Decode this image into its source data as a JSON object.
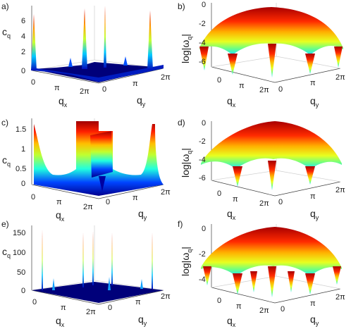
{
  "figure": {
    "panels": [
      {
        "label": "a)",
        "ylabel_main": "c",
        "ylabel_sub": "q",
        "xlabel_main": "q",
        "xlabel_sub": "x",
        "ylabel2_main": "q",
        "ylabel2_sub": "y",
        "z_ticks": [
          "0",
          "2",
          "4",
          "6"
        ],
        "x_ticks": [
          "0",
          "π",
          "2π"
        ],
        "y_ticks": [
          "0",
          "π",
          "2π"
        ]
      },
      {
        "label": "b)",
        "ylabel_main": "log|ω",
        "ylabel_sub": "q",
        "ylabel_end": "|",
        "xlabel_main": "q",
        "xlabel_sub": "x",
        "ylabel2_main": "q",
        "ylabel2_sub": "y",
        "z_ticks": [
          "0",
          "-2",
          "-4",
          "-6"
        ],
        "x_ticks": [
          "0",
          "π",
          "2π"
        ],
        "y_ticks": [
          "0",
          "π",
          "2π"
        ]
      },
      {
        "label": "c)",
        "ylabel_main": "c",
        "ylabel_sub": "q",
        "xlabel_main": "q",
        "xlabel_sub": "x",
        "ylabel2_main": "q",
        "ylabel2_sub": "y",
        "z_ticks": [
          "0",
          "0.5",
          "1",
          "1.5"
        ],
        "x_ticks": [
          "0",
          "π",
          "2π"
        ],
        "y_ticks": [
          "0",
          "π",
          "2π"
        ]
      },
      {
        "label": "d)",
        "ylabel_main": "log|ω",
        "ylabel_sub": "q",
        "ylabel_end": "|",
        "xlabel_main": "q",
        "xlabel_sub": "x",
        "ylabel2_main": "q",
        "ylabel2_sub": "y",
        "z_ticks": [
          "0",
          "-2",
          "-4",
          "-6"
        ],
        "x_ticks": [
          "0",
          "π",
          "2π"
        ],
        "y_ticks": [
          "0",
          "π",
          "2π"
        ]
      },
      {
        "label": "e)",
        "ylabel_main": "c",
        "ylabel_sub": "q",
        "xlabel_main": "q",
        "xlabel_sub": "x",
        "ylabel2_main": "q",
        "ylabel2_sub": "y",
        "z_ticks": [
          "0",
          "50",
          "100",
          "150"
        ],
        "x_ticks": [
          "0",
          "π",
          "2π"
        ],
        "y_ticks": [
          "0",
          "π",
          "2π"
        ]
      },
      {
        "label": "f)",
        "ylabel_main": "log|ω",
        "ylabel_sub": "q",
        "ylabel_end": "|",
        "xlabel_main": "q",
        "xlabel_sub": "x",
        "ylabel2_main": "q",
        "ylabel2_sub": "y",
        "z_ticks": [
          "0",
          "-2",
          "-4"
        ],
        "x_ticks": [
          "0",
          "π",
          "2π"
        ],
        "y_ticks": [
          "0",
          "π",
          "2π"
        ]
      }
    ]
  },
  "chart_data": [
    {
      "type": "surface",
      "panel": "a)",
      "zlim": [
        0,
        7.5
      ],
      "zlabel": "c_q",
      "peaks": [
        {
          "x": 0,
          "z": 7.0
        },
        {
          "x": "π",
          "z": 7.3
        },
        {
          "x": "2π",
          "z": 7.0
        }
      ],
      "baseline": 0.3,
      "colormap": [
        "#00008f",
        "#0066ff",
        "#20ffdf",
        "#ffff00",
        "#ff3000",
        "#800000"
      ]
    },
    {
      "type": "surface",
      "panel": "b)",
      "zlim": [
        -6.5,
        0.3
      ],
      "zlabel": "log|ω_q|",
      "dome_max": 0,
      "cusp_min": -6.3,
      "colormap": [
        "#00008f",
        "#0066ff",
        "#20ffdf",
        "#ffff00",
        "#ff3000",
        "#800000"
      ]
    },
    {
      "type": "surface",
      "panel": "c)",
      "zlim": [
        0,
        1.7
      ],
      "zlabel": "c_q",
      "plateau": 1.6,
      "baseline": 0.2,
      "colormap": [
        "#00008f",
        "#0066ff",
        "#20ffdf",
        "#ffff00",
        "#ff3000",
        "#800000"
      ]
    },
    {
      "type": "surface",
      "panel": "d)",
      "zlim": [
        -6.5,
        0.3
      ],
      "zlabel": "log|ω_q|",
      "dome_max": 0,
      "cusp_min": -6.0,
      "colormap": [
        "#00008f",
        "#0066ff",
        "#20ffdf",
        "#ffff00",
        "#ff3000",
        "#800000"
      ]
    },
    {
      "type": "surface",
      "panel": "e)",
      "zlim": [
        0,
        170
      ],
      "zlabel": "c_q",
      "peaks": [
        {
          "x": 0,
          "z": 165
        },
        {
          "x": "π",
          "z": 160
        },
        {
          "x": "2π",
          "z": 160
        }
      ],
      "baseline": 0,
      "colormap": [
        "#00008f",
        "#0066ff",
        "#20ffdf",
        "#ffff00",
        "#ff3000",
        "#800000"
      ]
    },
    {
      "type": "surface",
      "panel": "f)",
      "zlim": [
        -5.5,
        0.3
      ],
      "zlabel": "log|ω_q|",
      "dome_max": 0,
      "cusp_min": -5.3,
      "colormap": [
        "#00008f",
        "#0066ff",
        "#20ffdf",
        "#ffff00",
        "#ff3000",
        "#800000"
      ]
    }
  ]
}
